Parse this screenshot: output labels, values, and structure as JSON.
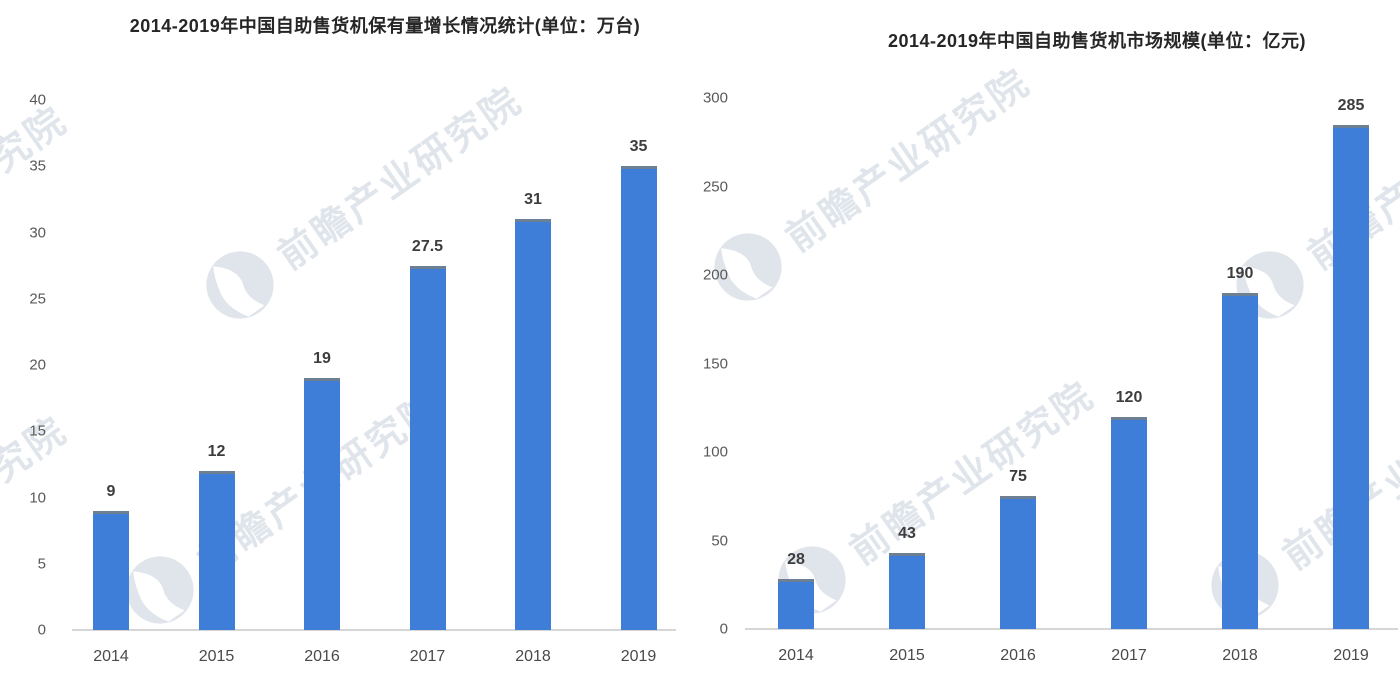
{
  "page": {
    "background": "#ffffff"
  },
  "colors": {
    "bar": "#3e7ed8",
    "bar_cap": "#6d7f92",
    "axis_line": "#d6d6d6",
    "tick_label": "#595959",
    "x_label": "#4a4a4a",
    "value_label": "#3d3d3d",
    "title": "#262626",
    "watermark": "#c3cdd9"
  },
  "watermark": {
    "text": "前瞻产业研究院",
    "logo": "qianzhan-circle-logo"
  },
  "chart_data": [
    {
      "type": "bar",
      "title": "2014-2019年中国自助售货机保有量增长情况统计(单位：万台)",
      "unit": "万台",
      "categories": [
        "2014",
        "2015",
        "2016",
        "2017",
        "2018",
        "2019"
      ],
      "values": [
        9,
        12,
        19,
        27.5,
        31,
        35
      ],
      "value_labels": [
        "9",
        "12",
        "19",
        "27.5",
        "31",
        "35"
      ],
      "xlabel": "",
      "ylabel": "",
      "ylim": [
        0,
        40
      ],
      "y_ticks": [
        0,
        5,
        10,
        15,
        20,
        25,
        30,
        35,
        40
      ],
      "grid": false,
      "legend": "none"
    },
    {
      "type": "bar",
      "title": "2014-2019年中国自助售货机市场规模(单位：亿元)",
      "unit": "亿元",
      "categories": [
        "2014",
        "2015",
        "2016",
        "2017",
        "2018",
        "2019"
      ],
      "values": [
        28,
        43,
        75,
        120,
        190,
        285
      ],
      "value_labels": [
        "28",
        "43",
        "75",
        "120",
        "190",
        "285"
      ],
      "xlabel": "",
      "ylabel": "",
      "ylim": [
        0,
        300
      ],
      "y_ticks": [
        0,
        50,
        100,
        150,
        200,
        250,
        300
      ],
      "grid": false,
      "legend": "none"
    }
  ]
}
